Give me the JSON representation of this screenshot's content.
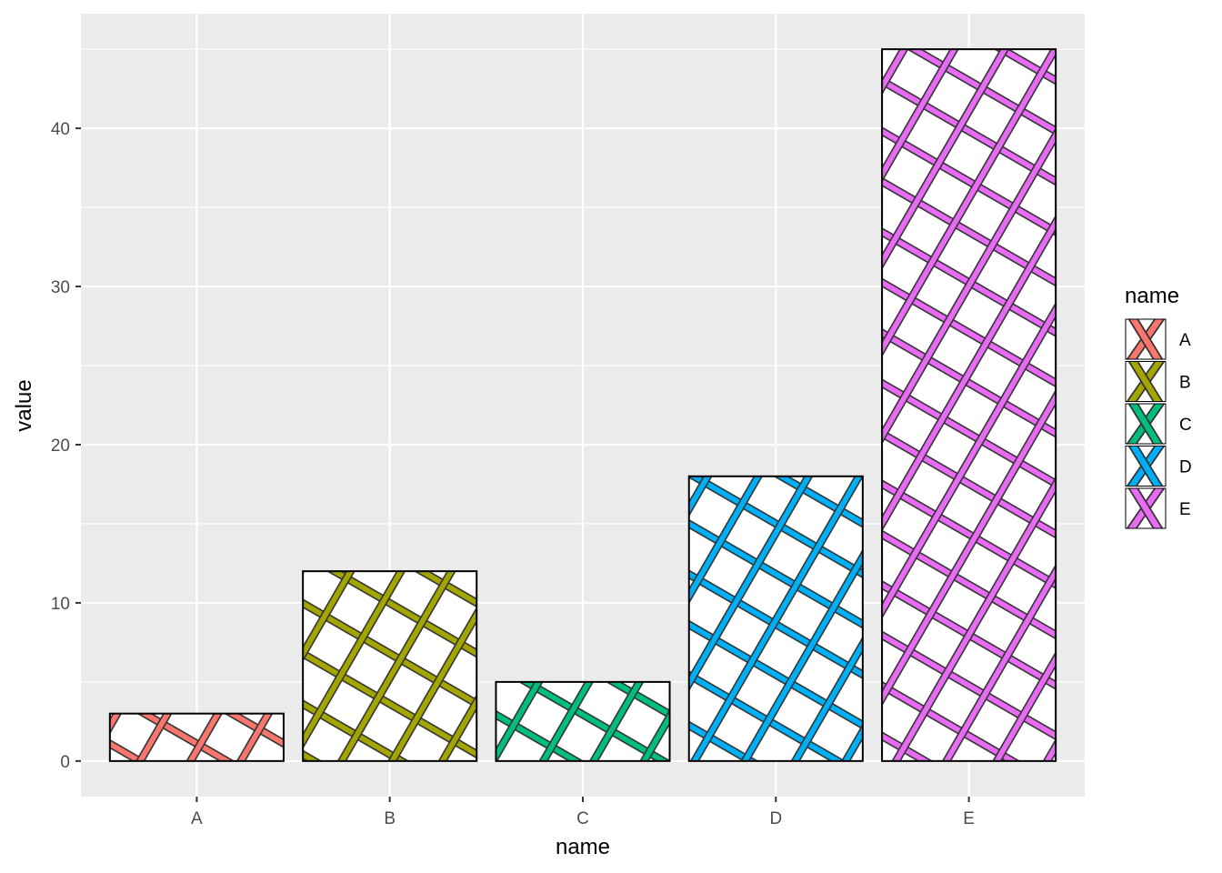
{
  "chart_data": {
    "type": "bar",
    "categories": [
      "A",
      "B",
      "C",
      "D",
      "E"
    ],
    "values": [
      3,
      12,
      5,
      18,
      45
    ],
    "colors": [
      "#F8766D",
      "#A3A500",
      "#00BF7D",
      "#00B0F6",
      "#E76BF3"
    ],
    "xlabel": "name",
    "ylabel": "value",
    "ylim": [
      -2.25,
      47.25
    ],
    "yticks": [
      0,
      10,
      20,
      30,
      40
    ],
    "y_minor": [
      5,
      15,
      25,
      35,
      45
    ],
    "grid": true,
    "fill_pattern": "crosshatch",
    "legend": {
      "title": "name",
      "position": "right",
      "entries": [
        "A",
        "B",
        "C",
        "D",
        "E"
      ]
    }
  }
}
